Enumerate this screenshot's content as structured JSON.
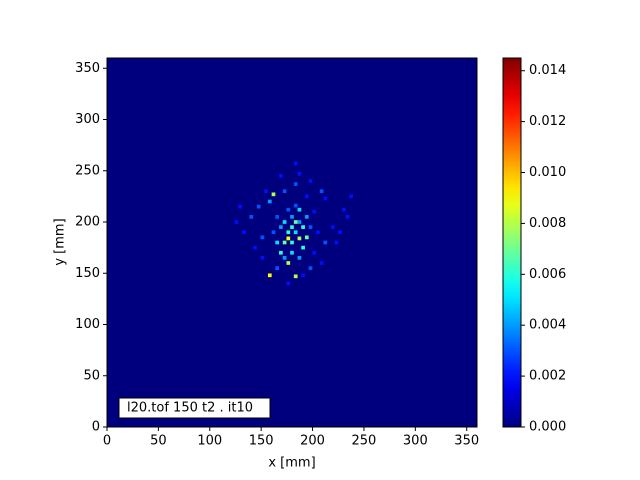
{
  "chart_data": {
    "type": "heatmap",
    "xlabel": "x [mm]",
    "ylabel": "y [mm]",
    "annotation": "l20.tof 150 t2 .  it10",
    "xlim": [
      0,
      360
    ],
    "ylim": [
      0,
      360
    ],
    "xticks": [
      0,
      50,
      100,
      150,
      200,
      250,
      300,
      350
    ],
    "yticks": [
      0,
      50,
      100,
      150,
      200,
      250,
      300,
      350
    ],
    "clim": [
      0,
      0.0145
    ],
    "cticks": [
      {
        "value": 0,
        "label": "0.000"
      },
      {
        "value": 0.002,
        "label": "0.002"
      },
      {
        "value": 0.004,
        "label": "0.004"
      },
      {
        "value": 0.006,
        "label": "0.006"
      },
      {
        "value": 0.008,
        "label": "0.008"
      },
      {
        "value": 0.01,
        "label": "0.010"
      },
      {
        "value": 0.012,
        "label": "0.012"
      },
      {
        "value": 0.014,
        "label": "0.014"
      }
    ],
    "x": [
      180,
      183.6,
      176.4,
      187.2,
      172.8,
      190.8,
      180,
      176.4,
      183.6,
      169.2,
      165.6,
      194.4,
      198,
      169.2,
      180,
      187.2,
      176.4,
      158.4,
      183.6,
      162,
      183.6,
      187.2,
      183.6,
      172.8,
      194.4,
      201.6,
      208.8,
      212.4,
      230.4,
      234,
      219.6,
      223.2,
      201.6,
      208.8,
      198,
      190.8,
      176.4,
      165.6,
      151.2,
      144,
      133.2,
      126,
      140.4,
      147.6,
      158.4,
      165.6,
      187.2,
      190.8,
      194.4,
      172.8,
      162,
      205.2,
      212.4,
      151.2,
      154.8,
      169.2,
      198,
      226.8,
      237.6,
      129.6,
      183.6,
      176.4,
      187.2,
      180,
      172.8
    ],
    "y": [
      195,
      190,
      184,
      184,
      180,
      195,
      205,
      212,
      216,
      195,
      205,
      205,
      195,
      170,
      170,
      165,
      160,
      148,
      147,
      227,
      237,
      247,
      257,
      230,
      225,
      210,
      230,
      223,
      212,
      205,
      195,
      180,
      170,
      160,
      155,
      148,
      140,
      155,
      165,
      175,
      190,
      200,
      205,
      215,
      220,
      180,
      212,
      175,
      185,
      200,
      190,
      190,
      180,
      185,
      230,
      245,
      240,
      190,
      225,
      215,
      200,
      190,
      200,
      180,
      165
    ],
    "values": [
      0.006,
      0.005,
      0.009,
      0.008,
      0.007,
      0.006,
      0.004,
      0.003,
      0.003,
      0.004,
      0.003,
      0.004,
      0.003,
      0.006,
      0.005,
      0.004,
      0.008,
      0.009,
      0.008,
      0.008,
      0.003,
      0.002,
      0.002,
      0.003,
      0.002,
      0.002,
      0.003,
      0.002,
      0.002,
      0.002,
      0.002,
      0.002,
      0.002,
      0.002,
      0.003,
      0.002,
      0.002,
      0.003,
      0.002,
      0.002,
      0.002,
      0.002,
      0.003,
      0.003,
      0.004,
      0.005,
      0.005,
      0.006,
      0.007,
      0.005,
      0.003,
      0.002,
      0.003,
      0.003,
      0.002,
      0.002,
      0.002,
      0.002,
      0.002,
      0.002,
      0.007,
      0.006,
      0.004,
      0.006,
      0.004
    ]
  }
}
